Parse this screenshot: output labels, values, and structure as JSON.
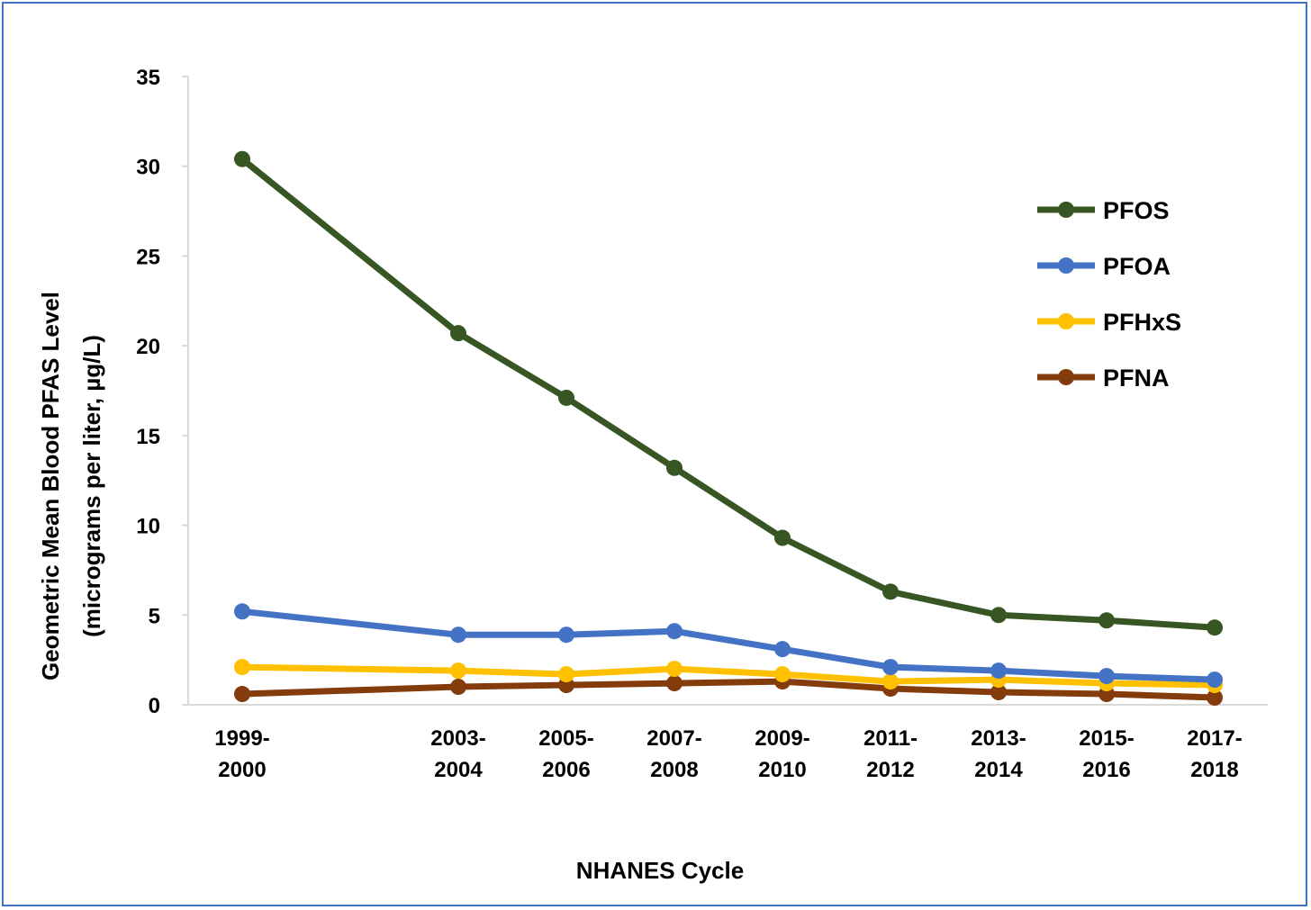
{
  "chart_data": {
    "type": "line",
    "title": "",
    "xlabel": "NHANES Cycle",
    "ylabel_line1": "Geometric Mean Blood PFAS Level",
    "ylabel_line2": "(micrograms per liter, µg/L)",
    "ylim": [
      0,
      35
    ],
    "yticks": [
      "0",
      "5",
      "10",
      "15",
      "20",
      "25",
      "30",
      "35"
    ],
    "categories": [
      [
        "1999-",
        "2000"
      ],
      [
        "2003-",
        "2004"
      ],
      [
        "2005-",
        "2006"
      ],
      [
        "2007-",
        "2008"
      ],
      [
        "2009-",
        "2010"
      ],
      [
        "2011-",
        "2012"
      ],
      [
        "2013-",
        "2014"
      ],
      [
        "2015-",
        "2016"
      ],
      [
        "2017-",
        "2018"
      ]
    ],
    "x_start_years": [
      1999,
      2003,
      2005,
      2007,
      2009,
      2011,
      2013,
      2015,
      2017
    ],
    "legend_position": "right",
    "grid": false,
    "series": [
      {
        "name": "PFOS",
        "color": "#375623",
        "values": [
          30.4,
          20.7,
          17.1,
          13.2,
          9.3,
          6.3,
          5.0,
          4.7,
          4.3
        ]
      },
      {
        "name": "PFOA",
        "color": "#4472c4",
        "values": [
          5.2,
          3.9,
          3.9,
          4.1,
          3.1,
          2.1,
          1.9,
          1.6,
          1.4
        ]
      },
      {
        "name": "PFHxS",
        "color": "#ffc000",
        "values": [
          2.1,
          1.9,
          1.7,
          2.0,
          1.7,
          1.3,
          1.4,
          1.2,
          1.1
        ]
      },
      {
        "name": "PFNA",
        "color": "#843c0c",
        "values": [
          0.6,
          1.0,
          1.1,
          1.2,
          1.3,
          0.9,
          0.7,
          0.6,
          0.4
        ]
      }
    ]
  }
}
